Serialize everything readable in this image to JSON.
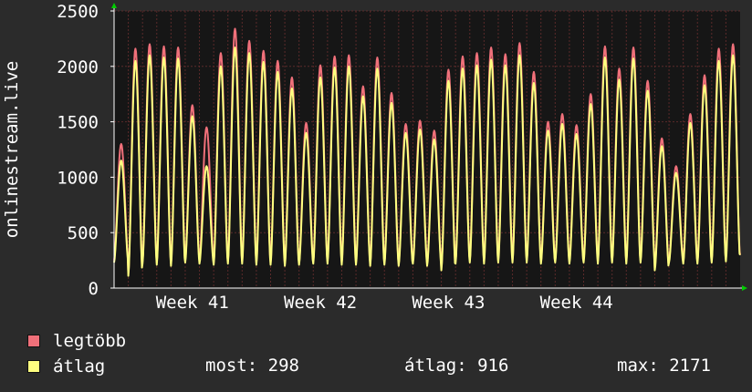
{
  "chart_data": {
    "type": "line",
    "ylabel": "onlinestream.live",
    "ylim": [
      0,
      2500
    ],
    "yticks": [
      0,
      500,
      1000,
      1500,
      2000,
      2500
    ],
    "xticks": [
      "Week 41",
      "Week 42",
      "Week 43",
      "Week 44"
    ],
    "grid": true,
    "colors": {
      "background": "#2b2b2b",
      "plot": "#161616",
      "grid": "#5a2a2a",
      "axis": "#ffffff",
      "arrow": "#00cc00"
    },
    "days": 44,
    "series": [
      {
        "name": "legtöbb",
        "color": "#f0707a",
        "peaks": [
          1300,
          2160,
          2200,
          2180,
          2170,
          1650,
          1450,
          2120,
          2340,
          2230,
          2140,
          2050,
          1900,
          1490,
          2010,
          2090,
          2100,
          1820,
          2080,
          1760,
          1480,
          1510,
          1420,
          1970,
          2090,
          2120,
          2170,
          2110,
          2210,
          1950,
          1500,
          1570,
          1470,
          1750,
          2180,
          1980,
          2170,
          1870,
          1350,
          1100,
          1570,
          1920,
          2160,
          2200
        ],
        "troughs": [
          250,
          130,
          240,
          230,
          220,
          250,
          240,
          230,
          240,
          240,
          230,
          230,
          220,
          230,
          240,
          240,
          230,
          230,
          220,
          230,
          220,
          240,
          220,
          180,
          240,
          250,
          240,
          250,
          250,
          250,
          240,
          250,
          240,
          250,
          240,
          250,
          240,
          250,
          180,
          250,
          240,
          240,
          250,
          260
        ]
      },
      {
        "name": "átlag",
        "color": "#ffff80",
        "peaks": [
          1150,
          2050,
          2100,
          2080,
          2070,
          1550,
          1100,
          2000,
          2170,
          2120,
          2040,
          1950,
          1800,
          1400,
          1900,
          1990,
          2000,
          1730,
          1980,
          1670,
          1400,
          1430,
          1340,
          1870,
          1980,
          2010,
          2060,
          2010,
          2100,
          1850,
          1420,
          1480,
          1390,
          1660,
          2080,
          1880,
          2070,
          1780,
          1280,
          1040,
          1490,
          1830,
          2050,
          2100
        ],
        "troughs": [
          230,
          110,
          220,
          210,
          200,
          230,
          220,
          210,
          220,
          220,
          210,
          210,
          200,
          210,
          220,
          220,
          210,
          210,
          200,
          210,
          200,
          220,
          200,
          160,
          220,
          230,
          220,
          230,
          230,
          230,
          220,
          230,
          220,
          230,
          220,
          230,
          220,
          230,
          160,
          230,
          220,
          220,
          230,
          240
        ]
      }
    ]
  },
  "legend": {
    "max_label": "legtöbb",
    "avg_label": "átlag",
    "now": "most: 298",
    "avg": "átlag: 916",
    "max": "max: 2171"
  }
}
